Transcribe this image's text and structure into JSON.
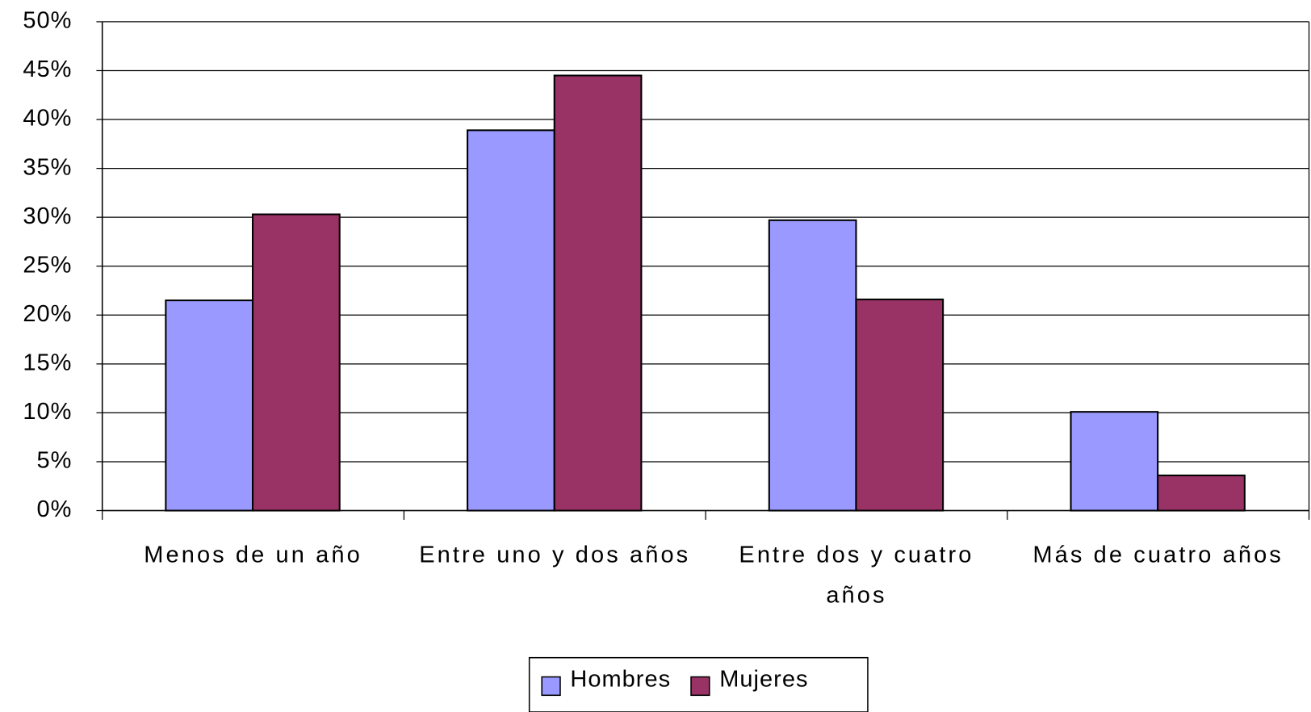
{
  "chart_data": {
    "type": "bar",
    "categories": [
      "Menos de un año",
      "Entre uno y dos años",
      "Entre dos y cuatro años",
      "Más de cuatro años"
    ],
    "series": [
      {
        "name": "Hombres",
        "color": "#9999ff",
        "values": [
          21.5,
          38.9,
          29.7,
          10.1
        ]
      },
      {
        "name": "Mujeres",
        "color": "#993366",
        "values": [
          30.3,
          44.5,
          21.6,
          3.6
        ]
      }
    ],
    "ylim": [
      0,
      50
    ],
    "yticks": [
      {
        "value": 0,
        "label": "0%"
      },
      {
        "value": 5,
        "label": "5%"
      },
      {
        "value": 10,
        "label": "10%"
      },
      {
        "value": 15,
        "label": "15%"
      },
      {
        "value": 20,
        "label": "20%"
      },
      {
        "value": 25,
        "label": "25%"
      },
      {
        "value": 30,
        "label": "30%"
      },
      {
        "value": 35,
        "label": "35%"
      },
      {
        "value": 40,
        "label": "40%"
      },
      {
        "value": 45,
        "label": "45%"
      },
      {
        "value": 50,
        "label": "50%"
      }
    ],
    "grid": true,
    "legend": "bottom"
  }
}
